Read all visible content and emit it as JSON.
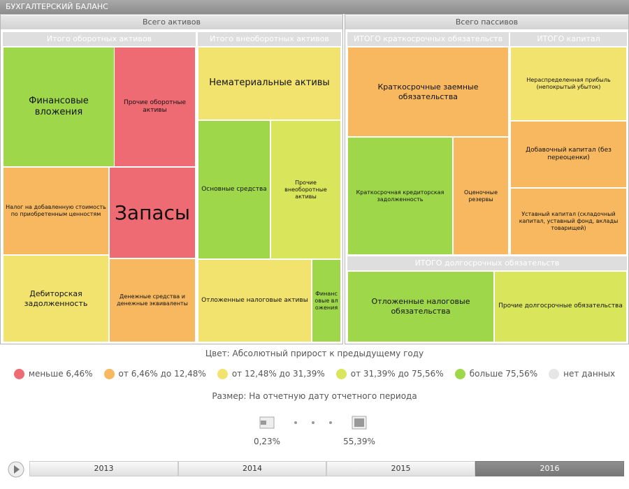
{
  "header": {
    "title": "БУХГАЛТЕРСКИЙ БАЛАНС"
  },
  "assets": {
    "title": "Всего активов",
    "groups": [
      {
        "title": "Итого оборотных активов",
        "cells": [
          "Финансовые вложения",
          "Прочие оборотные активы",
          "Налог на добавленную стоимость по приобретенным ценностям",
          "Запасы",
          "Дебиторская задолженность",
          "Денежные средства и денежные эквиваленты"
        ]
      },
      {
        "title": "Итого внеоборотных активов",
        "cells": [
          "Нематериальные активы",
          "Основные средства",
          "Прочие внеоборотные активы",
          "Отложенные налоговые активы",
          "Финансовые вложения"
        ]
      }
    ]
  },
  "liabilities": {
    "title": "Всего пассивов",
    "groups": [
      {
        "title": "ИТОГО краткосрочных обязательств",
        "cells": [
          "Краткосрочные заемные обязательства",
          "Краткосрочная кредиторская задолженность",
          "Оценочные резервы"
        ]
      },
      {
        "title": "ИТОГО капитал",
        "cells": [
          "Нераспределенная прибыль (непокрытый убыток)",
          "Добавочный капитал (без переоценки)",
          "Уставный капитал (складочный капитал, уставный фонд, вклады товарищей)"
        ]
      },
      {
        "title": "ИТОГО долгосрочных обязательств",
        "cells": [
          "Отложенные налоговые обязательства",
          "Прочие долгосрочные обязательства"
        ]
      }
    ]
  },
  "legend": {
    "title": "Цвет: Абсолютный прирост к предыдущему году",
    "items": [
      "меньше 6,46%",
      "от 6,46% до 12,48%",
      "от 12,48% до 31,39%",
      "от 31,39% до 75,56%",
      "больше 75,56%",
      "нет данных"
    ]
  },
  "size": {
    "title": "Размер: На отчетную дату отчетного периода",
    "min": "0,23%",
    "max": "55,39%"
  },
  "timeline": {
    "years": [
      "2013",
      "2014",
      "2015",
      "2016"
    ]
  }
}
